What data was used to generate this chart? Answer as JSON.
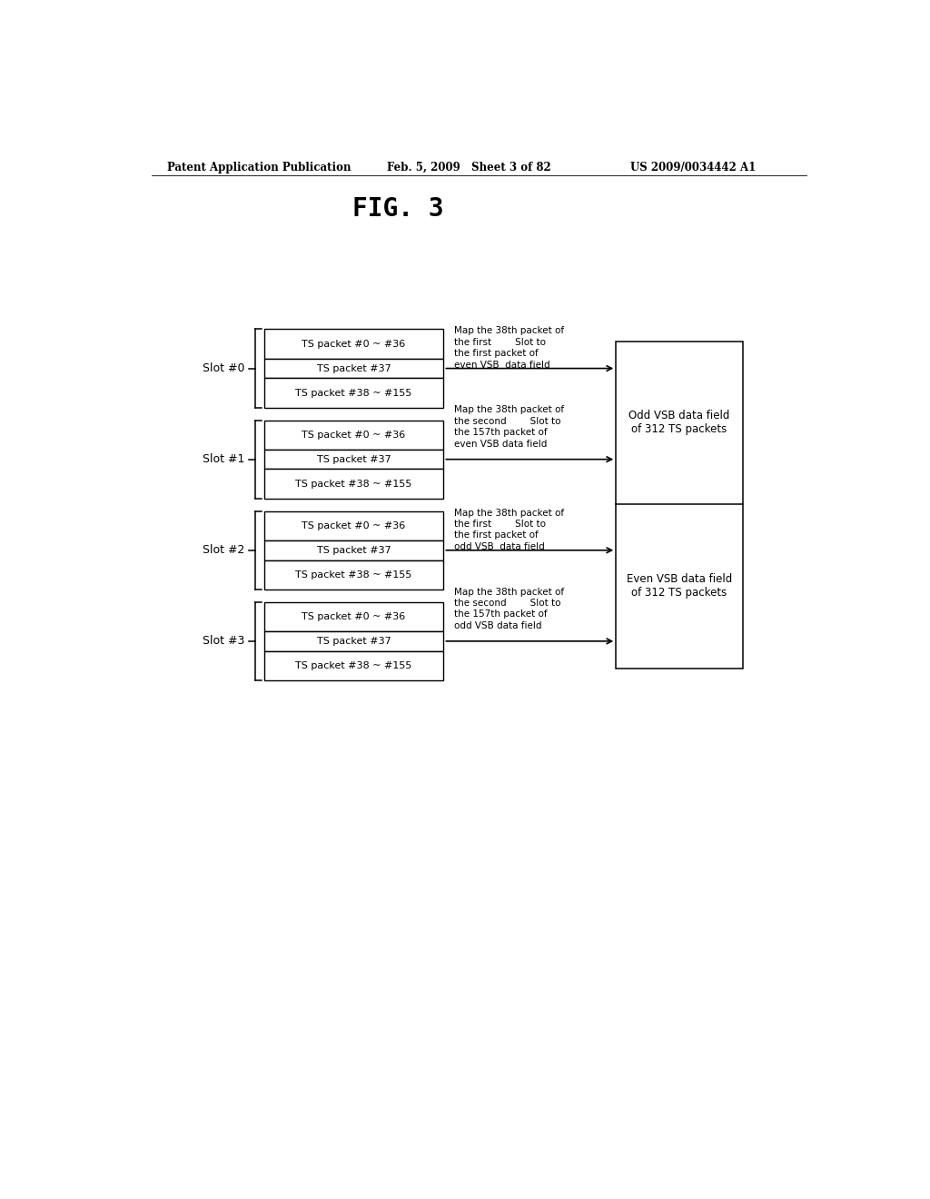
{
  "title": "FIG. 3",
  "header_left": "Patent Application Publication",
  "header_mid": "Feb. 5, 2009   Sheet 3 of 82",
  "header_right": "US 2009/0034442 A1",
  "slots": [
    "Slot #0",
    "Slot #1",
    "Slot #2",
    "Slot #3"
  ],
  "slot_rows": [
    [
      "TS packet #0 ~ #36",
      "TS packet #37",
      "TS packet #38 ~ #155"
    ],
    [
      "TS packet #0 ~ #36",
      "TS packet #37",
      "TS packet #38 ~ #155"
    ],
    [
      "TS packet #0 ~ #36",
      "TS packet #37",
      "TS packet #38 ~ #155"
    ],
    [
      "TS packet #0 ~ #36",
      "TS packet #37",
      "TS packet #38 ~ #155"
    ]
  ],
  "annotations": [
    "Map the 38th packet of\nthe first        Slot to\nthe first packet of\neven VSB  data field",
    "Map the 38th packet of\nthe second        Slot to\nthe 157th packet of\neven VSB data field",
    "Map the 38th packet of\nthe first        Slot to\nthe first packet of\nodd VSB  data field",
    "Map the 38th packet of\nthe second        Slot to\nthe 157th packet of\nodd VSB data field"
  ],
  "vsb_labels": [
    "Odd VSB data field\nof 312 TS packets",
    "Even VSB data field\nof 312 TS packets"
  ],
  "bg_color": "#ffffff",
  "text_color": "#000000"
}
